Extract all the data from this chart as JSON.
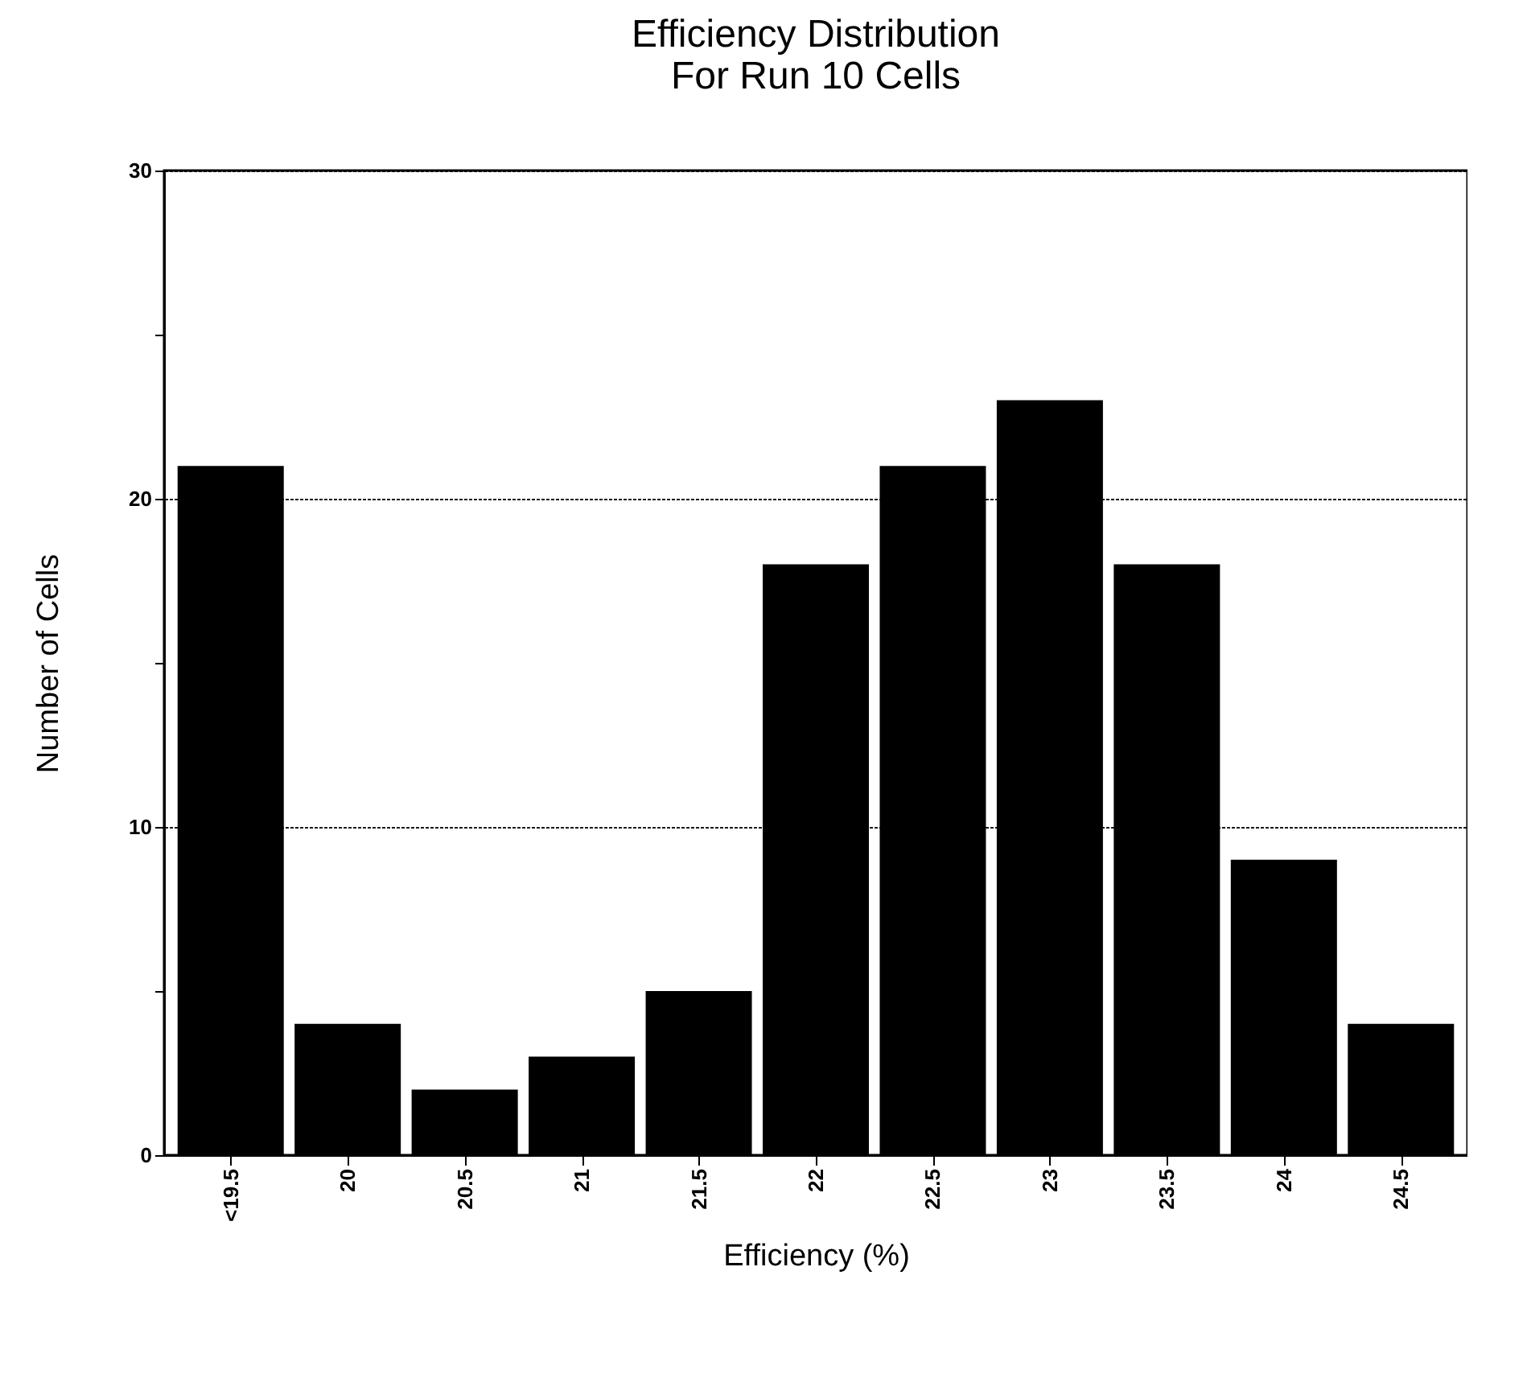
{
  "chart_data": {
    "type": "bar",
    "title": "Efficiency Distribution\nFor Run 10 Cells",
    "xlabel": "Efficiency (%)",
    "ylabel": "Number of Cells",
    "categories": [
      "<19.5",
      "20",
      "20.5",
      "21",
      "21.5",
      "22",
      "22.5",
      "23",
      "23.5",
      "24",
      "24.5"
    ],
    "values": [
      21,
      4,
      2,
      3,
      5,
      18,
      21,
      23,
      18,
      9,
      4
    ],
    "color": "#000000",
    "ylim": [
      0,
      30
    ],
    "yticks": [
      0,
      {
        "value": 5,
        "label": null
      },
      10,
      {
        "value": 15,
        "label": null
      },
      20,
      {
        "value": 25,
        "label": null
      },
      30
    ],
    "grid": "y"
  }
}
